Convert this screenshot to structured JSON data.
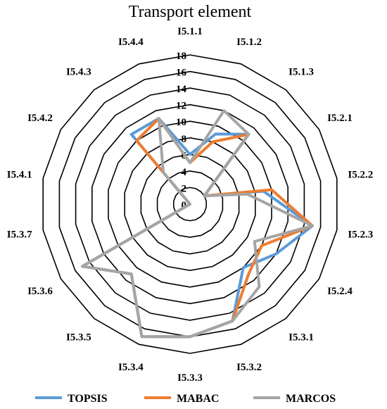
{
  "chart_data": {
    "type": "radar",
    "title": "Transport element",
    "categories": [
      "I5.1.1",
      "I5.1.2",
      "I5.1.3",
      "I5.2.1",
      "I5.2.2",
      "I5.2.3",
      "I5.2.4",
      "I5.3.1",
      "I5.3.2",
      "I5.3.3",
      "I5.3.4",
      "I5.3.5",
      "I5.3.6",
      "I5.3.7",
      "I5.4.1",
      "I5.4.2",
      "I5.4.3",
      "I5.4.4"
    ],
    "rlim": [
      0,
      18
    ],
    "ticks": [
      "0",
      "2",
      "4",
      "6",
      "8",
      "10",
      "12",
      "14",
      "16",
      "18"
    ],
    "grid": true,
    "legend_position": "bottom",
    "series": [
      {
        "name": "TOPSIS",
        "color": "#5b9bd5",
        "values": [
          6,
          9,
          11,
          2,
          9,
          15,
          12,
          10,
          15,
          16,
          17,
          11,
          15,
          0,
          0,
          0,
          11,
          11
        ]
      },
      {
        "name": "MABAC",
        "color": "#ed7d31",
        "values": [
          5,
          8,
          11,
          2,
          10,
          15,
          10,
          11,
          15,
          16,
          17,
          11,
          15,
          0,
          0,
          0,
          10,
          11
        ]
      },
      {
        "name": "MARCOS",
        "color": "#a5a5a5",
        "values": [
          5,
          12,
          11,
          2,
          7,
          15,
          9,
          13,
          15,
          16,
          17,
          11,
          15,
          0,
          0,
          0,
          5,
          11
        ]
      }
    ]
  }
}
